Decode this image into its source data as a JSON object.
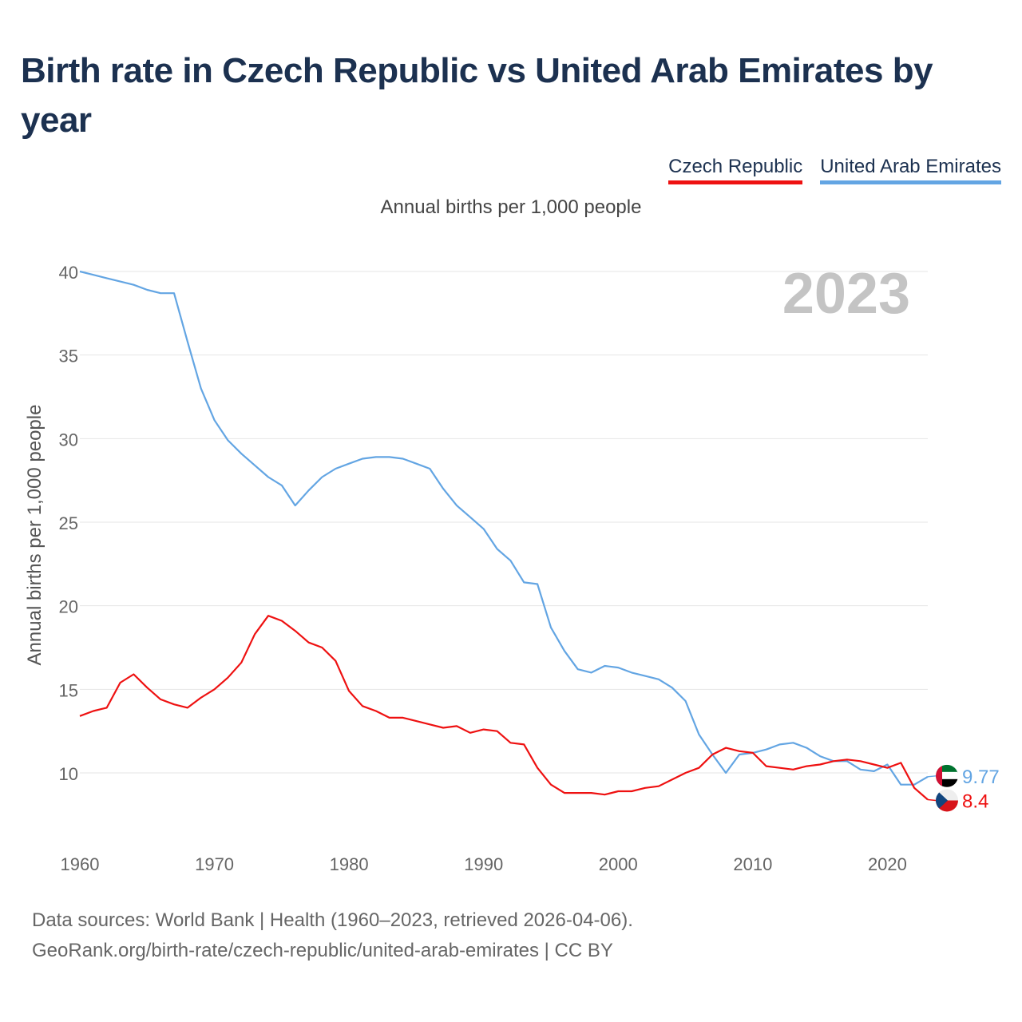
{
  "header": {
    "title": "Birth rate in Czech Republic vs United Arab Emirates by year",
    "subtitle": "Annual births per 1,000 people"
  },
  "legend": {
    "items": [
      {
        "label": "Czech Republic",
        "color": "#ee1111"
      },
      {
        "label": "United Arab Emirates",
        "color": "#63a5e3"
      }
    ]
  },
  "footer": {
    "line1": "Data sources: World Bank | Health (1960–2023, retrieved 2026-04-06).",
    "line2": "GeoRank.org/birth-rate/czech-republic/united-arab-emirates | CC BY"
  },
  "chart_data": {
    "type": "line",
    "title": "Birth rate in Czech Republic vs United Arab Emirates by year",
    "subtitle": "Annual births per 1,000 people",
    "xlabel": "",
    "ylabel": "Annual births per 1,000 people",
    "year_watermark": "2023",
    "xlim": [
      1960,
      2023
    ],
    "ylim": [
      6,
      40
    ],
    "yticks": [
      10,
      15,
      20,
      25,
      30,
      35,
      40
    ],
    "xticks": [
      1960,
      1970,
      1980,
      1990,
      2000,
      2010,
      2020
    ],
    "grid": true,
    "legend_position": "top-right",
    "x": [
      1960,
      1961,
      1962,
      1963,
      1964,
      1965,
      1966,
      1967,
      1968,
      1969,
      1970,
      1971,
      1972,
      1973,
      1974,
      1975,
      1976,
      1977,
      1978,
      1979,
      1980,
      1981,
      1982,
      1983,
      1984,
      1985,
      1986,
      1987,
      1988,
      1989,
      1990,
      1991,
      1992,
      1993,
      1994,
      1995,
      1996,
      1997,
      1998,
      1999,
      2000,
      2001,
      2002,
      2003,
      2004,
      2005,
      2006,
      2007,
      2008,
      2009,
      2010,
      2011,
      2012,
      2013,
      2014,
      2015,
      2016,
      2017,
      2018,
      2019,
      2020,
      2021,
      2022,
      2023
    ],
    "series": [
      {
        "name": "Czech Republic",
        "color": "#ee1111",
        "end_label": "8.4",
        "values": [
          13.4,
          13.7,
          13.9,
          15.4,
          15.9,
          15.1,
          14.4,
          14.1,
          13.9,
          14.5,
          15.0,
          15.7,
          16.6,
          18.3,
          19.4,
          19.1,
          18.5,
          17.8,
          17.5,
          16.7,
          14.9,
          14.0,
          13.7,
          13.3,
          13.3,
          13.1,
          12.9,
          12.7,
          12.8,
          12.4,
          12.6,
          12.5,
          11.8,
          11.7,
          10.3,
          9.3,
          8.8,
          8.8,
          8.8,
          8.7,
          8.9,
          8.9,
          9.1,
          9.2,
          9.6,
          10.0,
          10.3,
          11.1,
          11.5,
          11.3,
          11.2,
          10.4,
          10.3,
          10.2,
          10.4,
          10.5,
          10.7,
          10.8,
          10.7,
          10.5,
          10.3,
          10.6,
          9.1,
          8.4
        ]
      },
      {
        "name": "United Arab Emirates",
        "color": "#63a5e3",
        "end_label": "9.77",
        "values": [
          40.0,
          39.8,
          39.6,
          39.4,
          39.2,
          38.9,
          38.7,
          38.7,
          35.8,
          33.0,
          31.1,
          29.9,
          29.1,
          28.4,
          27.7,
          27.2,
          26.0,
          26.9,
          27.7,
          28.2,
          28.5,
          28.8,
          28.9,
          28.9,
          28.8,
          28.5,
          28.2,
          27.0,
          26.0,
          25.3,
          24.6,
          23.4,
          22.7,
          21.4,
          21.3,
          18.7,
          17.3,
          16.2,
          16.0,
          16.4,
          16.3,
          16.0,
          15.8,
          15.6,
          15.1,
          14.3,
          12.3,
          11.1,
          10.0,
          11.1,
          11.2,
          11.4,
          11.7,
          11.8,
          11.5,
          11.0,
          10.7,
          10.7,
          10.2,
          10.1,
          10.5,
          9.3,
          9.3,
          9.77
        ]
      }
    ]
  }
}
